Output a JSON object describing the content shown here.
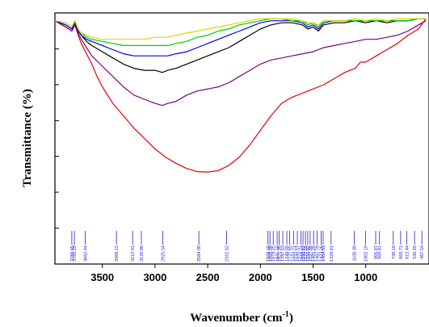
{
  "chart_data": {
    "type": "line",
    "xlabel": "Wavenumber (cm",
    "xlabel_superscript": "-1",
    "xlabel_suffix": ")",
    "ylabel": "Transmittance (%)",
    "x_reversed": true,
    "xlim": [
      3950,
      400
    ],
    "ylim": [
      0,
      100
    ],
    "x_ticks": [
      3500,
      3000,
      2500,
      2000,
      1500,
      1000
    ],
    "x_tick_labels": [
      "3500",
      "3000",
      "2500",
      "2000",
      "1500",
      "1000"
    ],
    "y_ticks": [
      0,
      14.3,
      28.6,
      42.9,
      57.1,
      71.4,
      85.7,
      100
    ],
    "grid": false,
    "series": [
      {
        "color": "#e60000",
        "x": [
          3950,
          3850,
          3790,
          3760,
          3730,
          3700,
          3650,
          3600,
          3550,
          3500,
          3400,
          3300,
          3200,
          3100,
          3000,
          2900,
          2800,
          2700,
          2600,
          2500,
          2400,
          2300,
          2200,
          2100,
          2000,
          1900,
          1800,
          1700,
          1600,
          1500,
          1400,
          1300,
          1200,
          1100,
          1050,
          1000,
          900,
          800,
          700,
          600,
          500,
          430
        ],
        "y": [
          97,
          94,
          92,
          95,
          90,
          86,
          81,
          76,
          70,
          65,
          57,
          51,
          45,
          40,
          35,
          31,
          28,
          25.5,
          24,
          23.8,
          24.5,
          27,
          31,
          37,
          44,
          51,
          57,
          60,
          62,
          64,
          66,
          69,
          72,
          74,
          77,
          77,
          80,
          83,
          86,
          90,
          93,
          98
        ]
      },
      {
        "color": "#7f007f",
        "x": [
          3950,
          3850,
          3790,
          3760,
          3730,
          3700,
          3650,
          3600,
          3500,
          3400,
          3300,
          3200,
          3100,
          3000,
          2930,
          2880,
          2800,
          2700,
          2600,
          2500,
          2400,
          2300,
          2200,
          2100,
          2000,
          1900,
          1800,
          1700,
          1600,
          1500,
          1400,
          1300,
          1200,
          1100,
          1000,
          900,
          800,
          700,
          600,
          500,
          430
        ],
        "y": [
          97,
          94,
          92,
          95,
          91,
          88,
          84,
          80,
          75,
          70,
          65,
          61,
          59,
          57,
          56,
          57,
          58,
          61,
          63,
          64,
          65,
          67,
          70,
          73,
          76,
          78,
          79,
          80,
          81,
          82,
          84,
          85,
          86,
          87,
          88,
          88,
          89,
          90,
          92,
          95,
          97
        ]
      },
      {
        "color": "#000000",
        "x": [
          3950,
          3850,
          3790,
          3760,
          3730,
          3700,
          3650,
          3600,
          3500,
          3400,
          3300,
          3200,
          3100,
          3000,
          2930,
          2880,
          2800,
          2700,
          2600,
          2500,
          2400,
          2300,
          2200,
          2100,
          2000,
          1900,
          1800,
          1700,
          1600,
          1550,
          1500,
          1450,
          1400,
          1300,
          1200,
          1100,
          1000,
          900,
          800,
          700,
          600,
          500,
          430
        ],
        "y": [
          97,
          95,
          93,
          96,
          92,
          90,
          87,
          85,
          82,
          79,
          76,
          74,
          73,
          73,
          72,
          73,
          74,
          76,
          78,
          80,
          82,
          84,
          87,
          90,
          93,
          95,
          96,
          96,
          95,
          93,
          94,
          92,
          95,
          96,
          96,
          97,
          96,
          97,
          96,
          97,
          97,
          98,
          98
        ]
      },
      {
        "color": "#0000e6",
        "x": [
          3950,
          3850,
          3790,
          3760,
          3730,
          3700,
          3650,
          3600,
          3500,
          3400,
          3300,
          3200,
          3100,
          3000,
          2930,
          2880,
          2800,
          2700,
          2600,
          2500,
          2400,
          2300,
          2200,
          2100,
          2000,
          1900,
          1800,
          1700,
          1600,
          1550,
          1500,
          1450,
          1400,
          1300,
          1200,
          1100,
          1000,
          900,
          800,
          700,
          600,
          500,
          430
        ],
        "y": [
          97,
          95,
          93,
          96,
          92,
          90,
          88,
          87,
          85,
          83,
          81,
          80,
          80,
          80,
          80,
          80,
          81,
          82,
          84,
          86,
          88,
          90,
          92,
          94,
          96,
          97,
          97,
          97,
          96,
          94,
          95,
          93,
          96,
          97,
          97,
          97,
          97,
          97,
          97,
          97,
          97,
          98,
          98
        ]
      },
      {
        "color": "#00cc00",
        "x": [
          3950,
          3850,
          3790,
          3760,
          3730,
          3700,
          3650,
          3600,
          3500,
          3400,
          3300,
          3200,
          3100,
          3000,
          2930,
          2880,
          2800,
          2700,
          2600,
          2500,
          2400,
          2300,
          2200,
          2100,
          2000,
          1900,
          1800,
          1700,
          1600,
          1550,
          1500,
          1450,
          1400,
          1300,
          1200,
          1100,
          1000,
          900,
          800,
          700,
          600,
          500,
          430
        ],
        "y": [
          97,
          96,
          94,
          97,
          93,
          91,
          89,
          88,
          87,
          86,
          85,
          85,
          85,
          85,
          85,
          85,
          86,
          87,
          89,
          90,
          92,
          93,
          95,
          96,
          97,
          98,
          98,
          97,
          97,
          95,
          96,
          94,
          97,
          97,
          97,
          97,
          97,
          97,
          97,
          97,
          97,
          98,
          98
        ]
      },
      {
        "color": "#d9d900",
        "x": [
          3950,
          3850,
          3790,
          3760,
          3730,
          3700,
          3650,
          3600,
          3500,
          3400,
          3300,
          3200,
          3100,
          3000,
          2930,
          2880,
          2800,
          2700,
          2600,
          2500,
          2400,
          2300,
          2200,
          2100,
          2000,
          1900,
          1800,
          1700,
          1600,
          1550,
          1500,
          1450,
          1400,
          1300,
          1200,
          1100,
          1000,
          900,
          800,
          700,
          600,
          500,
          430
        ],
        "y": [
          97,
          96,
          94,
          97,
          93,
          91,
          90,
          89,
          88,
          88,
          88,
          88,
          88,
          89,
          89,
          89,
          90,
          91,
          92,
          93,
          94,
          95,
          96,
          97,
          98,
          98,
          98,
          98,
          97,
          96,
          96,
          95,
          97,
          97,
          97,
          98,
          97,
          98,
          97,
          98,
          98,
          98,
          98
        ]
      }
    ],
    "peak_labels": [
      {
        "x": 3789.65,
        "text": "3789.65"
      },
      {
        "x": 3765.29,
        "text": "3765.29"
      },
      {
        "x": 3662.44,
        "text": "3662.44"
      },
      {
        "x": 3366.12,
        "text": "3366.12"
      },
      {
        "x": 3212.91,
        "text": "3212.91"
      },
      {
        "x": 3129.88,
        "text": "3129.88"
      },
      {
        "x": 2925.54,
        "text": "2925.54"
      },
      {
        "x": 2584.0,
        "text": "2584.00"
      },
      {
        "x": 2321.52,
        "text": "2321.52"
      },
      {
        "x": 1928.1,
        "text": "1928.10"
      },
      {
        "x": 1909.38,
        "text": "1909.38"
      },
      {
        "x": 1878.25,
        "text": "1878.25"
      },
      {
        "x": 1841.1,
        "text": "1841.10"
      },
      {
        "x": 1821.3,
        "text": "1821.30"
      },
      {
        "x": 1787.53,
        "text": "1787.53"
      },
      {
        "x": 1749.05,
        "text": "1749.05"
      },
      {
        "x": 1721.65,
        "text": "1721.65"
      },
      {
        "x": 1684.21,
        "text": "1684.21"
      },
      {
        "x": 1649.57,
        "text": "1649.57"
      },
      {
        "x": 1616.21,
        "text": "1616.21"
      },
      {
        "x": 1595.63,
        "text": "1595.63"
      },
      {
        "x": 1572.56,
        "text": "1572.56"
      },
      {
        "x": 1550.92,
        "text": "1550.92"
      },
      {
        "x": 1527.86,
        "text": "1527.86"
      },
      {
        "x": 1495.2,
        "text": "1495.20"
      },
      {
        "x": 1462.79,
        "text": "1462.79"
      },
      {
        "x": 1423.26,
        "text": "1423.26"
      },
      {
        "x": 1404.53,
        "text": "1404.53"
      },
      {
        "x": 1329.61,
        "text": "1329.61"
      },
      {
        "x": 1108.38,
        "text": "1108.38"
      },
      {
        "x": 1002.19,
        "text": "1002.19"
      },
      {
        "x": 905.87,
        "text": "905.87"
      },
      {
        "x": 869.81,
        "text": "869.81"
      },
      {
        "x": 739.18,
        "text": "739.18"
      },
      {
        "x": 669.71,
        "text": "669.71"
      },
      {
        "x": 612.44,
        "text": "612.44"
      },
      {
        "x": 536.95,
        "text": "536.95"
      },
      {
        "x": 467.54,
        "text": "467.54"
      }
    ]
  }
}
